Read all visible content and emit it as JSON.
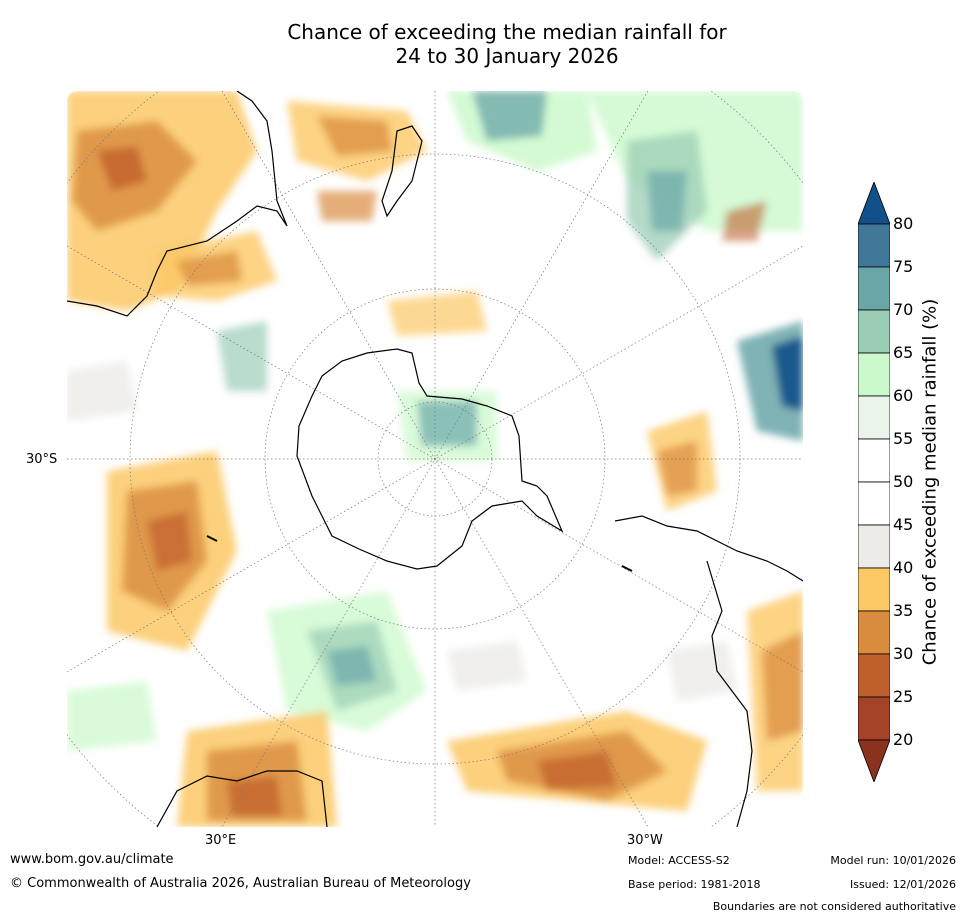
{
  "title": {
    "line1": "Chance of exceeding the median rainfall for",
    "line2": "24 to 30 January 2026"
  },
  "map": {
    "projection": "south-polar-stereographic",
    "lat_label": "30°S",
    "lon_labels": [
      "30°E",
      "30°W"
    ],
    "colors": {
      "ocean_bg": "#ffffff",
      "coast": "#000000",
      "grid": "#777777"
    }
  },
  "colorbar": {
    "title": "Chance of exceeding median rainfall (%)",
    "ticks": [
      "80",
      "75",
      "70",
      "65",
      "60",
      "55",
      "50",
      "45",
      "40",
      "35",
      "30",
      "25",
      "20"
    ],
    "colors_top_to_bottom": [
      "#12508a",
      "#417799",
      "#6aa6a8",
      "#9bcdb6",
      "#cbf9cb",
      "#eaf4ea",
      "#ffffff",
      "#ffffff",
      "#ecebe7",
      "#fcc865",
      "#da8c3e",
      "#c0602d",
      "#a54328",
      "#8a321e"
    ]
  },
  "footer": {
    "website": "www.bom.gov.au/climate",
    "copyright": "© Commonwealth of Australia 2026, Australian Bureau of Meteorology",
    "model": "Model: ACCESS-S2",
    "base_period": "Base period: 1981-2018",
    "model_run": "Model run: 10/01/2026",
    "issued": "Issued: 12/01/2026",
    "disclaimer": "Boundaries are not considered authoritative"
  }
}
